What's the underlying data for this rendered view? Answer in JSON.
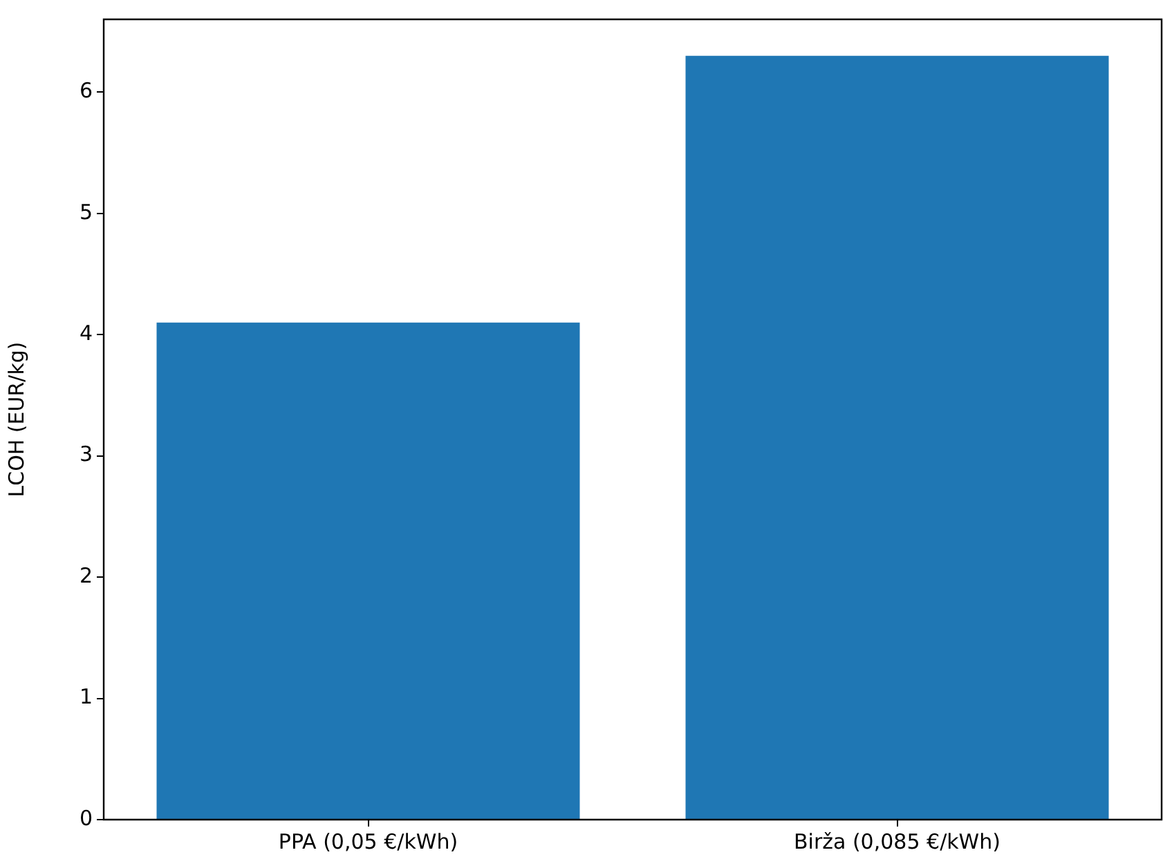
{
  "chart_data": {
    "type": "bar",
    "ylabel": "LCOH (EUR/kg)",
    "categories": [
      "PPA (0,05 €/kWh)",
      "Birža (0,085 €/kWh)"
    ],
    "values": [
      4.1,
      6.3
    ],
    "color": "#1f77b4",
    "ylim": [
      0,
      6.6
    ],
    "yticks": [
      0,
      1,
      2,
      3,
      4,
      5,
      6
    ],
    "grid": false,
    "legend": false
  }
}
